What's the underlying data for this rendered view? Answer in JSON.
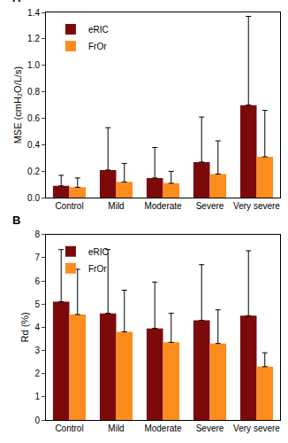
{
  "chart_data": [
    {
      "type": "bar",
      "title": "A",
      "categories": [
        "Control",
        "Mild",
        "Moderate",
        "Severe",
        "Very severe"
      ],
      "y_label": "MSE (cmH₂O/L/s)",
      "series": [
        {
          "name": "eRIC",
          "color": "#7d0a0a",
          "values": [
            0.09,
            0.21,
            0.15,
            0.27,
            0.7
          ],
          "errors": [
            0.08,
            0.32,
            0.23,
            0.34,
            0.67
          ]
        },
        {
          "name": "FrOr",
          "color": "#fb8c1e",
          "values": [
            0.08,
            0.12,
            0.11,
            0.18,
            0.31
          ],
          "errors": [
            0.07,
            0.14,
            0.09,
            0.25,
            0.35
          ]
        }
      ],
      "ylim": [
        0,
        1.4
      ],
      "yticks": [
        {
          "value": 0,
          "label": "0.0"
        },
        0.2,
        0.4,
        0.6,
        0.8,
        {
          "value": 1,
          "label": "1.0"
        },
        1.2,
        1.4
      ],
      "grid": false,
      "legend": "top left"
    },
    {
      "type": "bar",
      "title": "B",
      "categories": [
        "Control",
        "Mild",
        "Moderate",
        "Severe",
        "Very severe"
      ],
      "y_label": "Rd (%)",
      "series": [
        {
          "name": "eRIC",
          "color": "#7d0a0a",
          "values": [
            5.1,
            4.6,
            3.95,
            4.3,
            4.5
          ],
          "errors": [
            2.25,
            2.75,
            2.0,
            2.4,
            2.8
          ]
        },
        {
          "name": "FrOr",
          "color": "#fb8c1e",
          "values": [
            4.55,
            3.8,
            3.35,
            3.3,
            2.3
          ],
          "errors": [
            1.95,
            1.8,
            1.25,
            1.45,
            0.6
          ]
        }
      ],
      "ylim": [
        0,
        8
      ],
      "yticks": [
        0,
        1,
        2,
        3,
        4,
        5,
        6,
        7,
        8
      ],
      "grid": false,
      "legend": "top left"
    }
  ]
}
